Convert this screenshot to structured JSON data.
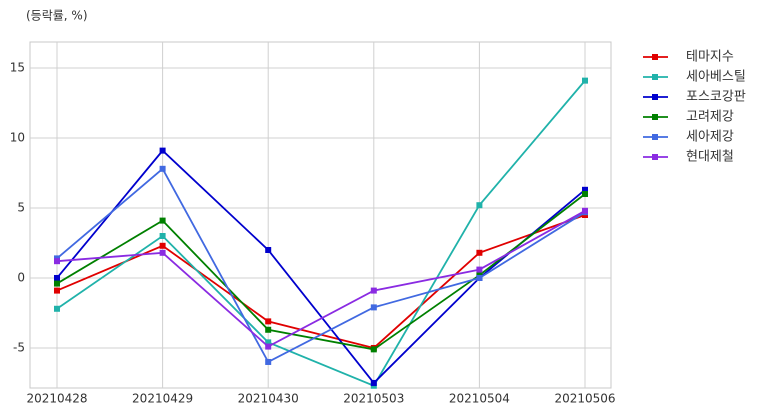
{
  "chart_data": {
    "type": "line",
    "annotation": "(등락률, %)",
    "categories": [
      "20210428",
      "20210429",
      "20210430",
      "20210503",
      "20210504",
      "20210506"
    ],
    "series": [
      {
        "name": "테마지수",
        "color": "#e00000",
        "values": [
          -0.9,
          2.3,
          -3.1,
          -5.0,
          1.8,
          4.5
        ]
      },
      {
        "name": "세아베스틸",
        "color": "#20b2aa",
        "values": [
          -2.2,
          3.0,
          -4.6,
          -7.7,
          5.2,
          14.1
        ]
      },
      {
        "name": "포스코강판",
        "color": "#0000cd",
        "values": [
          0.0,
          9.1,
          2.0,
          -7.5,
          0.0,
          6.3
        ]
      },
      {
        "name": "고려제강",
        "color": "#008000",
        "values": [
          -0.4,
          4.1,
          -3.7,
          -5.1,
          0.2,
          6.0
        ]
      },
      {
        "name": "세아제강",
        "color": "#4169e1",
        "values": [
          1.4,
          7.8,
          -6.0,
          -2.1,
          0.0,
          4.7
        ]
      },
      {
        "name": "현대제철",
        "color": "#8a2be2",
        "values": [
          1.2,
          1.8,
          -4.9,
          -0.9,
          0.6,
          4.8
        ]
      }
    ],
    "ylim": [
      -7.86,
      16.86
    ],
    "yticks": [
      -5,
      0,
      5,
      10,
      15
    ],
    "grid": true
  }
}
